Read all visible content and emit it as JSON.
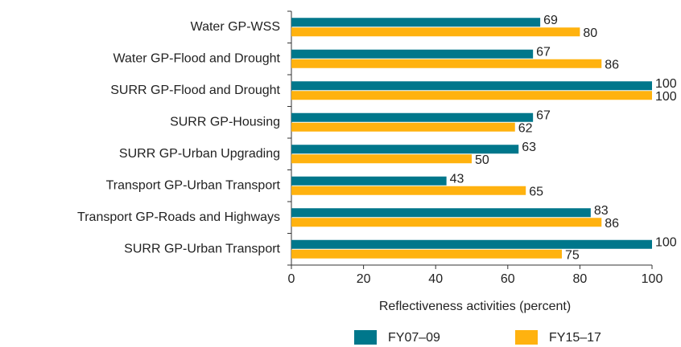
{
  "chart_data": {
    "type": "bar",
    "orientation": "horizontal",
    "categories": [
      "Water GP-WSS",
      "Water GP-Flood and Drought",
      "SURR GP-Flood and Drought",
      "SURR GP-Housing",
      "SURR GP-Urban Upgrading",
      "Transport GP-Urban Transport",
      "Transport GP-Roads and Highways",
      "SURR GP-Urban Transport"
    ],
    "series": [
      {
        "name": "FY07–09",
        "color": "#00778b",
        "values": [
          69,
          67,
          100,
          67,
          63,
          43,
          83,
          100
        ]
      },
      {
        "name": "FY15–17",
        "color": "#ffb20f",
        "values": [
          80,
          86,
          100,
          62,
          50,
          65,
          86,
          75
        ]
      }
    ],
    "xlim": [
      0,
      100
    ],
    "xticks": [
      0,
      20,
      40,
      60,
      80,
      100
    ],
    "xlabel": "Reflectiveness activities (percent)",
    "legend": "bottom"
  }
}
